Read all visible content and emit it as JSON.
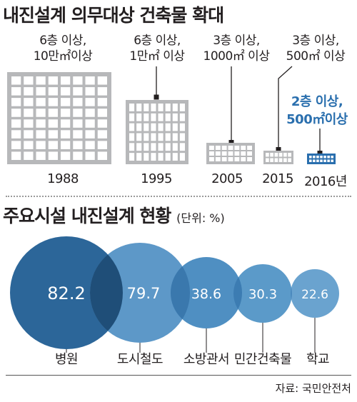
{
  "section1": {
    "title": "내진설계 의무대상 건축물 확대",
    "buildings": [
      {
        "year": "1988",
        "caption": [
          "6층 이상,",
          "10만㎡이상"
        ]
      },
      {
        "year": "1995",
        "caption": [
          "6층 이상,",
          "1만㎡ 이상"
        ]
      },
      {
        "year": "2005",
        "caption": [
          "3층 이상,",
          "1000㎡ 이상"
        ]
      },
      {
        "year": "2015",
        "caption": [
          "3층 이상,",
          "500㎡ 이상"
        ]
      },
      {
        "year": "2016년",
        "caption": [
          "2층 이상,",
          "500㎡이상"
        ],
        "highlight": true
      }
    ]
  },
  "section2": {
    "title": "주요시설 내진설계 현황",
    "unit": "(단위: %)",
    "bubbles": [
      {
        "label": "병원",
        "value": "82.2"
      },
      {
        "label": "도시철도",
        "value": "79.7"
      },
      {
        "label": "소방관서",
        "value": "38.6"
      },
      {
        "label": "민간건축물",
        "value": "30.3"
      },
      {
        "label": "학교",
        "value": "22.6"
      }
    ]
  },
  "source": "자료: 국민안전처",
  "colors": {
    "building": "#b7b8ba",
    "window": "#ffffff",
    "highlight_building": "#2a6fae",
    "bubble1": "#2c6699",
    "bubble2": "#5d98c8",
    "bubble3": "#4f8fc2",
    "bubble4": "#5b9ac9",
    "bubble5": "#6aa3cf",
    "overlap": "#1f4e78"
  }
}
